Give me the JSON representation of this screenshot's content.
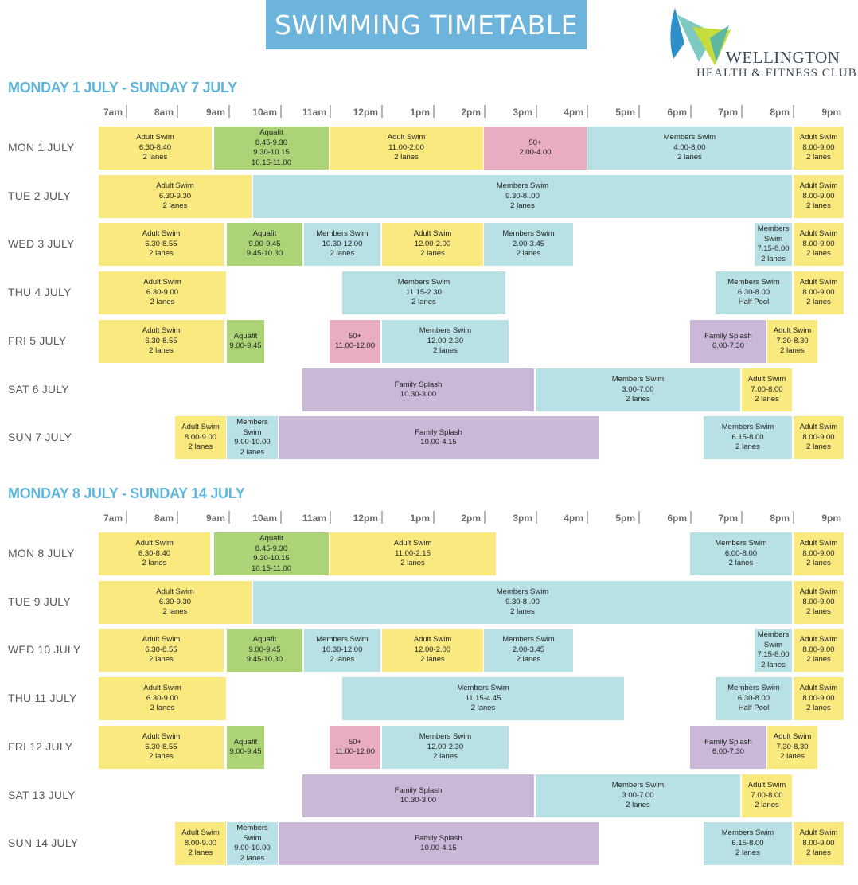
{
  "header": {
    "title": "SWIMMING TIMETABLE",
    "logo_name": "WELLINGTON",
    "logo_subtitle": "HEALTH & FITNESS CLUB"
  },
  "time_labels": [
    "7am",
    "8am",
    "9am",
    "10am",
    "11am",
    "12pm",
    "1pm",
    "2pm",
    "3pm",
    "4pm",
    "5pm",
    "6pm",
    "7pm",
    "8pm",
    "9pm"
  ],
  "colors": {
    "adult": "#fae97f",
    "aqua": "#acd477",
    "members": "#b8e1e5",
    "fifty": "#e9adc1",
    "family": "#cbb7d7",
    "heading": "#5fb6dc",
    "banner": "#6cb4dc"
  },
  "weeks": [
    {
      "heading": "MONDAY 1 JULY - SUNDAY 7 JULY",
      "days": [
        {
          "label": "MON 1 JULY",
          "sessions": [
            {
              "lines": [
                "Adult Swim",
                "6.30-8.40",
                "2 lanes"
              ],
              "type": "adult"
            },
            {
              "lines": [
                "Aquafit",
                "8.45-9.30",
                "9.30-10.15",
                "10.15-11.00"
              ],
              "type": "aqua"
            },
            {
              "lines": [
                "Adult Swim",
                "11.00-2.00",
                "2 lanes"
              ],
              "type": "adult"
            },
            {
              "lines": [
                "50+",
                "2.00-4.00"
              ],
              "type": "fifty"
            },
            {
              "lines": [
                "Members Swim",
                "4.00-8.00",
                "2 lanes"
              ],
              "type": "members"
            },
            {
              "lines": [
                "Adult Swim",
                "8.00-9.00",
                "2 lanes"
              ],
              "type": "adult"
            }
          ]
        },
        {
          "label": "TUE 2 JULY",
          "sessions": [
            {
              "lines": [
                "Adult Swim",
                "6.30-9.30",
                "2 lanes"
              ],
              "type": "adult"
            },
            {
              "lines": [
                "Members Swim",
                "9.30-8..00",
                "2 lanes"
              ],
              "type": "members"
            },
            {
              "lines": [
                "Adult Swim",
                "8.00-9.00",
                "2 lanes"
              ],
              "type": "adult"
            }
          ]
        },
        {
          "label": "WED 3 JULY",
          "sessions": [
            {
              "lines": [
                "Adult Swim",
                "6.30-8.55",
                "2 lanes"
              ],
              "type": "adult"
            },
            {
              "lines": [
                "Aquafit",
                "9.00-9.45",
                "9.45-10.30"
              ],
              "type": "aqua"
            },
            {
              "lines": [
                "Members Swim",
                "10.30-12.00",
                "2 lanes"
              ],
              "type": "members"
            },
            {
              "lines": [
                "Adult Swim",
                "12.00-2.00",
                "2 lanes"
              ],
              "type": "adult"
            },
            {
              "lines": [
                "Members Swim",
                "2.00-3.45",
                "2 lanes"
              ],
              "type": "members"
            },
            {
              "lines": [
                "Members",
                "Swim",
                "7.15-8.00",
                "2 lanes"
              ],
              "type": "members"
            },
            {
              "lines": [
                "Adult Swim",
                "8.00-9.00",
                "2 lanes"
              ],
              "type": "adult"
            }
          ]
        },
        {
          "label": "THU 4 JULY",
          "sessions": [
            {
              "lines": [
                "Adult Swim",
                "6.30-9.00",
                "2 lanes"
              ],
              "type": "adult"
            },
            {
              "lines": [
                "Members Swim",
                "11.15-2.30",
                "2 lanes"
              ],
              "type": "members"
            },
            {
              "lines": [
                "Members Swim",
                "6.30-8.00",
                "Half Pool"
              ],
              "type": "members"
            },
            {
              "lines": [
                "Adult Swim",
                "8.00-9.00",
                "2 lanes"
              ],
              "type": "adult"
            }
          ]
        },
        {
          "label": "FRI 5 JULY",
          "sessions": [
            {
              "lines": [
                "Adult Swim",
                "6.30-8.55",
                "2 lanes"
              ],
              "type": "adult"
            },
            {
              "lines": [
                "Aquafit",
                "9.00-9.45"
              ],
              "type": "aqua"
            },
            {
              "lines": [
                "50+",
                "11.00-12.00"
              ],
              "type": "fifty"
            },
            {
              "lines": [
                "Members Swim",
                "12.00-2.30",
                "2 lanes"
              ],
              "type": "members"
            },
            {
              "lines": [
                "Family Splash",
                "6.00-7.30"
              ],
              "type": "family"
            },
            {
              "lines": [
                "Adult Swim",
                "7.30-8.30",
                "2 lanes"
              ],
              "type": "adult"
            }
          ]
        },
        {
          "label": "SAT 6 JULY",
          "sessions": [
            {
              "lines": [
                "Family Splash",
                "10.30-3.00"
              ],
              "type": "family"
            },
            {
              "lines": [
                "Members Swim",
                "3.00-7.00",
                "2 lanes"
              ],
              "type": "members"
            },
            {
              "lines": [
                "Adult Swim",
                "7.00-8.00",
                "2 lanes"
              ],
              "type": "adult"
            }
          ]
        },
        {
          "label": "SUN 7 JULY",
          "sessions": [
            {
              "lines": [
                "Adult Swim",
                "8.00-9.00",
                "2 lanes"
              ],
              "type": "adult"
            },
            {
              "lines": [
                "Members",
                "Swim",
                "9.00-10.00",
                "2 lanes"
              ],
              "type": "members"
            },
            {
              "lines": [
                "Family Splash",
                "10.00-4.15"
              ],
              "type": "family"
            },
            {
              "lines": [
                "Members Swim",
                "6.15-8.00",
                "2 lanes"
              ],
              "type": "members"
            },
            {
              "lines": [
                "Adult Swim",
                "8.00-9.00",
                "2 lanes"
              ],
              "type": "adult"
            }
          ]
        }
      ]
    },
    {
      "heading": "MONDAY 8 JULY - SUNDAY 14 JULY",
      "days": [
        {
          "label": "MON 8 JULY",
          "sessions": [
            {
              "lines": [
                "Adult Swim",
                "6.30-8.40",
                "2 lanes"
              ],
              "type": "adult"
            },
            {
              "lines": [
                "Aquafit",
                "8.45-9.30",
                "9.30-10.15",
                "10.15-11.00"
              ],
              "type": "aqua"
            },
            {
              "lines": [
                "Adult Swim",
                "11.00-2.15",
                "2 lanes"
              ],
              "type": "adult"
            },
            {
              "lines": [
                "Members Swim",
                "6.00-8.00",
                "2 lanes"
              ],
              "type": "members"
            },
            {
              "lines": [
                "Adult Swim",
                "8.00-9.00",
                "2 lanes"
              ],
              "type": "adult"
            }
          ]
        },
        {
          "label": "TUE 9 JULY",
          "sessions": [
            {
              "lines": [
                "Adult Swim",
                "6.30-9.30",
                "2 lanes"
              ],
              "type": "adult"
            },
            {
              "lines": [
                "Members Swim",
                "9.30-8..00",
                "2 lanes"
              ],
              "type": "members"
            },
            {
              "lines": [
                "Adult Swim",
                "8.00-9.00",
                "2 lanes"
              ],
              "type": "adult"
            }
          ]
        },
        {
          "label": "WED 10 JULY",
          "sessions": [
            {
              "lines": [
                "Adult Swim",
                "6.30-8.55",
                "2 lanes"
              ],
              "type": "adult"
            },
            {
              "lines": [
                "Aquafit",
                "9.00-9.45",
                "9.45-10.30"
              ],
              "type": "aqua"
            },
            {
              "lines": [
                "Members Swim",
                "10.30-12.00",
                "2 lanes"
              ],
              "type": "members"
            },
            {
              "lines": [
                "Adult Swim",
                "12.00-2.00",
                "2 lanes"
              ],
              "type": "adult"
            },
            {
              "lines": [
                "Members Swim",
                "2.00-3.45",
                "2 lanes"
              ],
              "type": "members"
            },
            {
              "lines": [
                "Members",
                "Swim",
                "7.15-8.00",
                "2 lanes"
              ],
              "type": "members"
            },
            {
              "lines": [
                "Adult Swim",
                "8.00-9.00",
                "2 lanes"
              ],
              "type": "adult"
            }
          ]
        },
        {
          "label": "THU 11 JULY",
          "sessions": [
            {
              "lines": [
                "Adult Swim",
                "6.30-9.00",
                "2 lanes"
              ],
              "type": "adult"
            },
            {
              "lines": [
                "Members Swim",
                "11.15-4.45",
                "2 lanes"
              ],
              "type": "members"
            },
            {
              "lines": [
                "Members Swim",
                "6.30-8.00",
                "Half Pool"
              ],
              "type": "members"
            },
            {
              "lines": [
                "Adult Swim",
                "8.00-9.00",
                "2 lanes"
              ],
              "type": "adult"
            }
          ]
        },
        {
          "label": "FRI 12 JULY",
          "sessions": [
            {
              "lines": [
                "Adult Swim",
                "6.30-8.55",
                "2 lanes"
              ],
              "type": "adult"
            },
            {
              "lines": [
                "Aquafit",
                "9.00-9.45"
              ],
              "type": "aqua"
            },
            {
              "lines": [
                "50+",
                "11.00-12.00"
              ],
              "type": "fifty"
            },
            {
              "lines": [
                "Members Swim",
                "12.00-2.30",
                "2 lanes"
              ],
              "type": "members"
            },
            {
              "lines": [
                "Family Splash",
                "6.00-7.30"
              ],
              "type": "family"
            },
            {
              "lines": [
                "Adult Swim",
                "7.30-8.30",
                "2 lanes"
              ],
              "type": "adult"
            }
          ]
        },
        {
          "label": "SAT 13 JULY",
          "sessions": [
            {
              "lines": [
                "Family Splash",
                "10.30-3.00"
              ],
              "type": "family"
            },
            {
              "lines": [
                "Members Swim",
                "3.00-7.00",
                "2 lanes"
              ],
              "type": "members"
            },
            {
              "lines": [
                "Adult Swim",
                "7.00-8.00",
                "2 lanes"
              ],
              "type": "adult"
            }
          ]
        },
        {
          "label": "SUN 14 JULY",
          "sessions": [
            {
              "lines": [
                "Adult Swim",
                "8.00-9.00",
                "2 lanes"
              ],
              "type": "adult"
            },
            {
              "lines": [
                "Members",
                "Swim",
                "9.00-10.00",
                "2 lanes"
              ],
              "type": "members"
            },
            {
              "lines": [
                "Family Splash",
                "10.00-4.15"
              ],
              "type": "family"
            },
            {
              "lines": [
                "Members Swim",
                "6.15-8.00",
                "2 lanes"
              ],
              "type": "members"
            },
            {
              "lines": [
                "Adult Swim",
                "8.00-9.00",
                "2 lanes"
              ],
              "type": "adult"
            }
          ]
        }
      ]
    }
  ]
}
